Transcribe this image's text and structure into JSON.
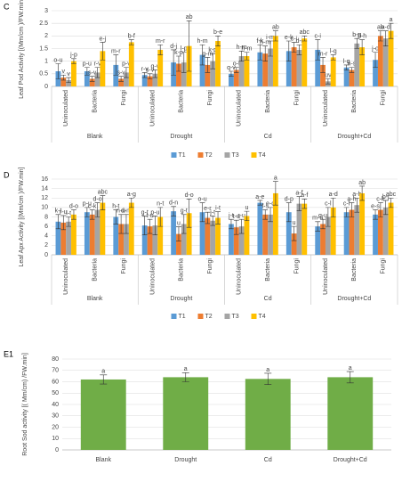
{
  "chart_data": [
    {
      "type": "bar",
      "panel": "C",
      "y_label": "Leaf Pod Activity [(Mm/cm )/FW.min]",
      "categories": [
        "Uninoculated",
        "Bacteria",
        "Fungi",
        "Uninoculated",
        "Bacteria",
        "Fungi",
        "Uninoculated",
        "Bacteria",
        "Fungi",
        "Uninoculated",
        "Bacteria",
        "Fungi"
      ],
      "groups": [
        "Blank",
        "Drought",
        "Cd",
        "Drought+Cd"
      ],
      "ylim": [
        0,
        3
      ],
      "yticks": [
        0,
        0.5,
        1,
        1.5,
        2,
        2.5,
        3
      ],
      "grid": true,
      "legend": "bottom",
      "series": [
        {
          "name": "T1",
          "color": "#5b9bd5",
          "values": [
            0.6,
            0.6,
            0.85,
            0.45,
            0.95,
            1.25,
            0.5,
            1.35,
            1.4,
            1.45,
            0.75,
            1.05
          ],
          "errors": [
            0.3,
            0.15,
            0.4,
            0.1,
            0.5,
            0.4,
            0.1,
            0.3,
            0.4,
            0.4,
            0.1,
            0.3
          ],
          "letters": [
            "o-u",
            "p-u",
            "m-r",
            "r-v",
            "d-j",
            "h-m",
            "q-v",
            "f-k",
            "e-k",
            "c-i",
            "l-q",
            "j-o"
          ]
        },
        {
          "name": "T2",
          "color": "#ed7d31",
          "values": [
            0.35,
            0.3,
            0.3,
            0.4,
            0.9,
            0.85,
            0.65,
            1.3,
            1.55,
            0.85,
            0.65,
            2.0
          ],
          "errors": [
            0.1,
            0.1,
            0.1,
            0.1,
            0.3,
            0.3,
            0.1,
            0.3,
            0.2,
            0.3,
            0.1,
            0.2
          ],
          "letters": [
            "v",
            "s-v",
            "s-v",
            "s-v",
            "k-p",
            "g-m",
            "o-t",
            "h-m",
            "c-i",
            "m-r",
            "n-s",
            "ab"
          ]
        },
        {
          "name": "T3",
          "color": "#a5a5a5",
          "values": [
            0.25,
            0.55,
            0.55,
            0.5,
            0.95,
            1.0,
            1.2,
            1.5,
            1.45,
            0.2,
            1.7,
            1.9
          ],
          "errors": [
            0.1,
            0.2,
            0.2,
            0.15,
            0.4,
            0.3,
            0.2,
            0.3,
            0.2,
            0.1,
            0.2,
            0.3
          ],
          "letters": [
            "v",
            "r-v",
            "p-v",
            "q-v",
            "l-p",
            "k-p",
            "h-m",
            "i-m",
            "d-i",
            "uv",
            "b-g",
            "a-d"
          ]
        },
        {
          "name": "T4",
          "color": "#ffc000",
          "values": [
            1.0,
            1.4,
            1.75,
            1.45,
            1.6,
            1.8,
            1.2,
            2.0,
            1.9,
            1.15,
            1.55,
            2.2
          ],
          "errors": [
            0.1,
            0.35,
            0.1,
            0.2,
            1.0,
            0.2,
            0.15,
            0.2,
            0.1,
            0.1,
            0.3,
            0.3
          ],
          "letters": [
            "j-p",
            "e-j",
            "b-f",
            "m-r",
            "ab",
            "b-e",
            "h-m",
            "ab",
            "abc",
            "l-q",
            "b-h",
            "a"
          ]
        }
      ]
    },
    {
      "type": "bar",
      "panel": "D",
      "y_label": "Leaf Apx Activity [(Mm/cm )/FW.min]",
      "categories": [
        "Uninoculated",
        "Bacteria",
        "Fungi",
        "Uninoculated",
        "Bacteria",
        "Fungi",
        "Uninoculated",
        "Bacteria",
        "Fungi",
        "Uninoculated",
        "Bacteria",
        "Fungi"
      ],
      "groups": [
        "Blank",
        "Drought",
        "Cd",
        "Drought+Cd"
      ],
      "ylim": [
        0,
        16
      ],
      "yticks": [
        0,
        2,
        4,
        6,
        8,
        10,
        12,
        14,
        16
      ],
      "grid": true,
      "legend": "bottom",
      "series": [
        {
          "name": "T1",
          "color": "#5b9bd5",
          "values": [
            7,
            9,
            8,
            6.2,
            9.2,
            9,
            6.5,
            11,
            9,
            6,
            9,
            8.5
          ],
          "errors": [
            1.5,
            1,
            1.5,
            2,
            1,
            2,
            1,
            0.5,
            2,
            1,
            1,
            1
          ],
          "letters": [
            "k-t",
            "p-u",
            "h-t",
            "g-t",
            "d-n",
            "o-u",
            "j-t",
            "a-e",
            "d-p",
            "m-u",
            "c-l",
            "e-s"
          ]
        },
        {
          "name": "T2",
          "color": "#ed7d31",
          "values": [
            6.8,
            8.5,
            6.5,
            6,
            4.4,
            7.8,
            5.8,
            8.5,
            4.5,
            6.5,
            9.5,
            9.5
          ],
          "errors": [
            1.5,
            1,
            2,
            1.5,
            1.5,
            1.2,
            1.5,
            1,
            1.5,
            1,
            1.5,
            1.5
          ],
          "letters": [
            "r-u",
            "c-k",
            "n-u",
            "t-u",
            "u",
            "e-r",
            "t-u",
            "f-s",
            "u",
            "q-u",
            "a-h",
            "c-k"
          ]
        },
        {
          "name": "T3",
          "color": "#a5a5a5",
          "values": [
            7,
            9.5,
            6.5,
            6.2,
            6.5,
            7.2,
            6,
            8.5,
            10.8,
            8,
            10.5,
            10
          ],
          "errors": [
            1,
            1.5,
            2,
            2,
            2,
            1,
            1.5,
            1.5,
            1.5,
            2,
            1.5,
            1.5
          ],
          "letters": [
            "l-t",
            "d-o",
            "d-m",
            "p-u",
            "g-t",
            "j-t",
            "r-u",
            "e-q",
            "a-f",
            "c-l",
            "a-h",
            "b-j"
          ]
        },
        {
          "name": "T4",
          "color": "#ffc000",
          "values": [
            8.5,
            11,
            11,
            8,
            8.8,
            7.8,
            8.2,
            13,
            10.8,
            10,
            13,
            11
          ],
          "errors": [
            1,
            1.5,
            1,
            2,
            3,
            1.3,
            1,
            2.5,
            1,
            2,
            1.5,
            1
          ],
          "letters": [
            "d-o",
            "abc",
            "a-g",
            "n-t",
            "d-o",
            "i-t",
            "u",
            "a",
            "a-f",
            "a-d",
            "ab",
            "abc"
          ]
        }
      ]
    },
    {
      "type": "bar",
      "panel": "E1",
      "y_label": "Root Sod activity [( Mm/cm) /FW.min]",
      "categories": [
        "Blank",
        "Drought",
        "Cd",
        "Drought+Cd"
      ],
      "ylim": [
        0,
        80
      ],
      "yticks": [
        0,
        10,
        20,
        30,
        40,
        50,
        60,
        70,
        80
      ],
      "grid": true,
      "series": [
        {
          "color": "#70ad47",
          "values": [
            62,
            64,
            62.5,
            64
          ],
          "errors": [
            4,
            4,
            5,
            5
          ],
          "letters": [
            "a",
            "a",
            "a",
            "a"
          ]
        }
      ]
    }
  ]
}
